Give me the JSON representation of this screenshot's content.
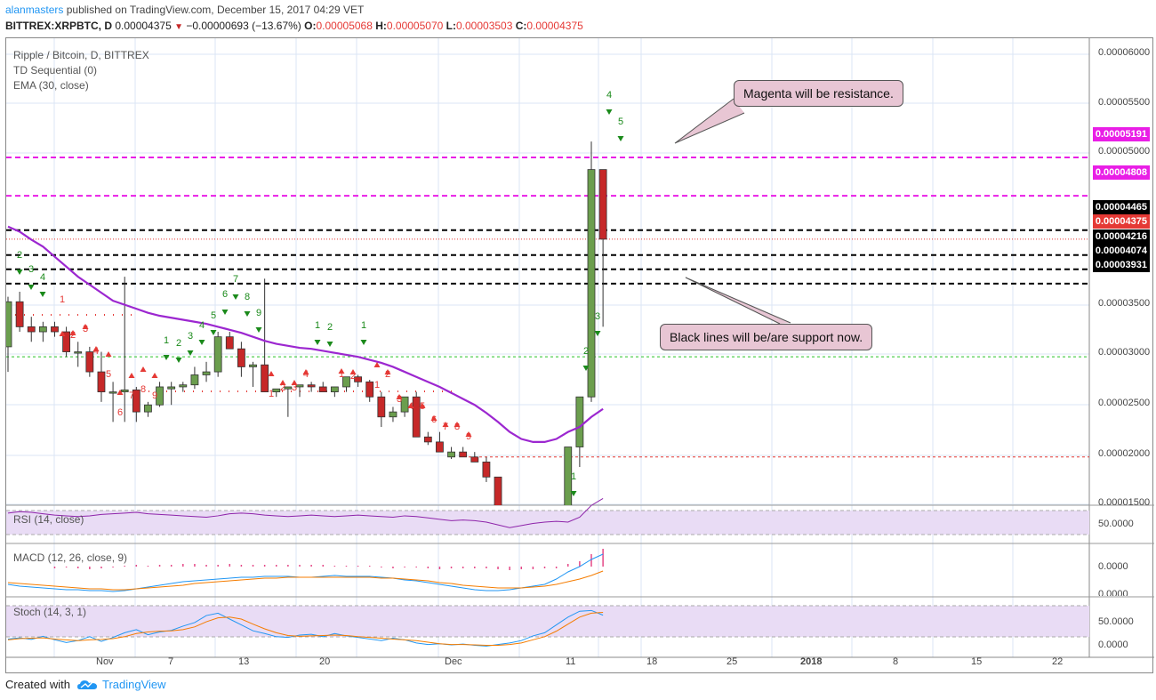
{
  "header": {
    "author": "alanmasters",
    "published": "published on TradingView.com, December 15, 2017 04:29 VET",
    "symbol": "BITTREX:XRPBTC, D",
    "last": "0.00004375",
    "change": "−0.00000693 (−13.67%)",
    "open_label": "O:",
    "open": "0.00005068",
    "high_label": "H:",
    "high": "0.00005070",
    "low_label": "L:",
    "low": "0.00003503",
    "close_label": "C:",
    "close": "0.00004375"
  },
  "legend": {
    "title": "Ripple / Bitcoin, D, BITTREX",
    "td": "TD Sequential (0)",
    "ema": "EMA (30, close)"
  },
  "indicators": {
    "rsi": "RSI (14, close)",
    "macd": "MACD (12, 26, close, 9)",
    "stoch": "Stoch (14, 3, 1)"
  },
  "callouts": {
    "magenta": "Magenta will be resistance.",
    "black": "Black lines will be/are support now."
  },
  "price_axis": [
    "0.00006000",
    "0.00005500",
    "0.00005000",
    "0.00003500",
    "0.00003000",
    "0.00002500",
    "0.00002000",
    "0.00001500"
  ],
  "price_labels": {
    "m1": "0.00005191",
    "m2": "0.00004808",
    "b1": "0.00004465",
    "cur": "0.00004375",
    "b2": "0.00004216",
    "b3": "0.00004074",
    "b4": "0.00003931"
  },
  "sub_axis": {
    "rsi50": "50.0000",
    "macd0": "0.0000",
    "macdcut": "0.0000",
    "st50": "50.0000",
    "st0": "0.0000"
  },
  "x_axis": [
    "Nov",
    "7",
    "13",
    "20",
    "Dec",
    "11",
    "18",
    "25",
    "2018",
    "8",
    "15",
    "22"
  ],
  "footer": {
    "created": "Created with",
    "brand": "TradingView"
  },
  "colors": {
    "up": "#6b9e4e",
    "down": "#c62828",
    "ema": "#9c27d0",
    "magenta": "#e91ee6",
    "td_green": "#1b8a1b",
    "td_red": "#e53935",
    "rsi": "#8e24aa",
    "macd": "#2196f3",
    "signal": "#f57c00",
    "accent": "#2196f3"
  },
  "chart_data": {
    "type": "candlestick",
    "series": [
      {
        "name": "XRPBTC",
        "ohlc": [
          [
            3.3,
            3.8,
            3.05,
            3.75
          ],
          [
            3.75,
            3.85,
            3.45,
            3.5
          ],
          [
            3.5,
            3.6,
            3.35,
            3.45
          ],
          [
            3.45,
            3.55,
            3.35,
            3.5
          ],
          [
            3.5,
            3.55,
            3.4,
            3.45
          ],
          [
            3.45,
            3.5,
            3.2,
            3.25
          ],
          [
            3.25,
            3.35,
            3.1,
            3.25
          ],
          [
            3.25,
            3.3,
            3.0,
            3.05
          ],
          [
            3.05,
            3.25,
            2.75,
            2.85
          ],
          [
            2.85,
            2.95,
            2.55,
            2.85
          ],
          [
            2.85,
            4.0,
            2.55,
            2.87
          ],
          [
            2.87,
            2.9,
            2.55,
            2.65
          ],
          [
            2.65,
            2.75,
            2.6,
            2.72
          ],
          [
            2.72,
            2.95,
            2.7,
            2.9
          ],
          [
            2.88,
            2.95,
            2.72,
            2.9
          ],
          [
            2.9,
            2.95,
            2.85,
            2.92
          ],
          [
            2.92,
            3.1,
            2.88,
            3.02
          ],
          [
            3.02,
            3.15,
            2.95,
            3.05
          ],
          [
            3.05,
            3.45,
            3.0,
            3.4
          ],
          [
            3.4,
            3.45,
            3.3,
            3.28
          ],
          [
            3.28,
            3.35,
            3.0,
            3.1
          ],
          [
            3.1,
            3.15,
            2.9,
            3.12
          ],
          [
            3.12,
            3.98,
            2.85,
            2.85
          ],
          [
            2.85,
            2.88,
            2.8,
            2.88
          ],
          [
            2.88,
            2.9,
            2.6,
            2.9
          ],
          [
            2.9,
            2.92,
            2.8,
            2.92
          ],
          [
            2.92,
            2.95,
            2.85,
            2.9
          ],
          [
            2.9,
            2.95,
            2.85,
            2.85
          ],
          [
            2.85,
            2.9,
            2.8,
            2.9
          ],
          [
            2.9,
            3.0,
            2.85,
            3.0
          ],
          [
            3.0,
            3.02,
            2.9,
            2.95
          ],
          [
            2.95,
            2.97,
            2.75,
            2.8
          ],
          [
            2.8,
            2.85,
            2.5,
            2.6
          ],
          [
            2.6,
            2.7,
            2.55,
            2.65
          ],
          [
            2.65,
            2.8,
            2.6,
            2.8
          ],
          [
            2.8,
            2.85,
            2.4,
            2.4
          ],
          [
            2.4,
            2.45,
            2.32,
            2.35
          ],
          [
            2.35,
            2.45,
            2.25,
            2.25
          ],
          [
            2.2,
            2.3,
            2.18,
            2.25
          ],
          [
            2.25,
            2.3,
            2.2,
            2.2
          ],
          [
            2.2,
            2.25,
            2.15,
            2.15
          ],
          [
            2.15,
            2.2,
            1.95,
            2.0
          ],
          [
            2.0,
            2.0,
            1.55,
            1.55
          ],
          [
            1.55,
            1.6,
            1.45,
            1.48
          ],
          [
            1.48,
            1.5,
            1.4,
            1.42
          ],
          [
            1.42,
            1.65,
            1.4,
            1.55
          ],
          [
            1.55,
            1.65,
            1.45,
            1.48
          ],
          [
            1.5,
            1.52,
            1.44,
            1.46
          ],
          [
            1.46,
            2.3,
            1.44,
            2.3
          ],
          [
            2.3,
            2.8,
            2.1,
            2.8
          ],
          [
            2.8,
            5.35,
            2.75,
            5.07
          ],
          [
            5.07,
            5.07,
            3.5,
            4.375
          ]
        ]
      },
      {
        "name": "EMA (30, close)",
        "values": [
          4.5,
          4.45,
          4.37,
          4.3,
          4.2,
          4.1,
          4.0,
          3.92,
          3.84,
          3.76,
          3.72,
          3.68,
          3.64,
          3.61,
          3.59,
          3.57,
          3.55,
          3.53,
          3.5,
          3.47,
          3.44,
          3.4,
          3.36,
          3.33,
          3.31,
          3.29,
          3.28,
          3.26,
          3.24,
          3.22,
          3.2,
          3.17,
          3.14,
          3.1,
          3.05,
          3.0,
          2.95,
          2.9,
          2.84,
          2.78,
          2.72,
          2.64,
          2.55,
          2.45,
          2.38,
          2.35,
          2.35,
          2.38,
          2.45,
          2.5,
          2.6,
          2.68
        ]
      }
    ],
    "levels": {
      "magenta_resistance": [
        5.191,
        4.808
      ],
      "black_support": [
        4.465,
        4.216,
        4.074,
        3.931
      ],
      "green_dotted": 3.2,
      "red_dotted": 2.2,
      "current": 4.375
    },
    "y_units": "x 1e-5 BTC",
    "ylim": [
      1.45,
      6.15
    ],
    "rsi": {
      "level": 50
    },
    "stoch": {
      "levels": [
        80,
        20
      ]
    },
    "x_ticks": [
      "Nov",
      "7",
      "13",
      "20",
      "Dec",
      "11",
      "18",
      "25",
      "2018",
      "8",
      "15",
      "22"
    ]
  }
}
